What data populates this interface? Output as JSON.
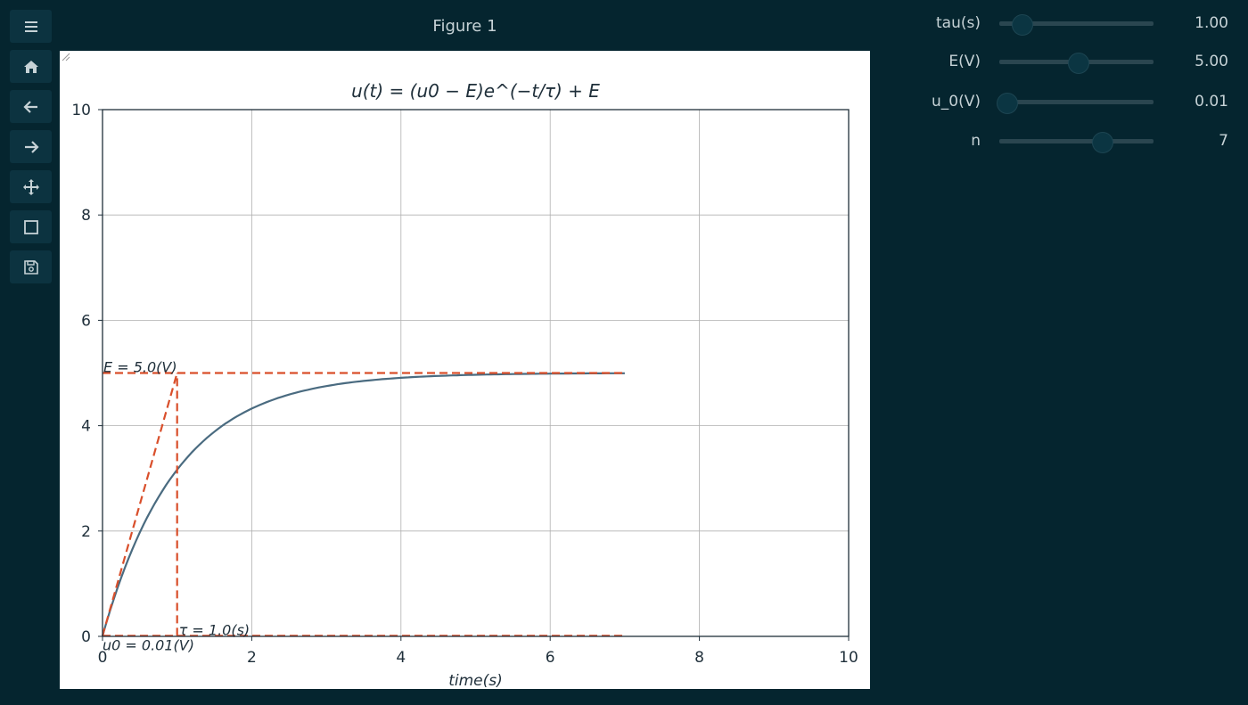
{
  "window": {
    "title": "Figure 1"
  },
  "toolbar": [
    {
      "name": "menu",
      "icon": "menu-icon"
    },
    {
      "name": "home",
      "icon": "home-icon"
    },
    {
      "name": "back",
      "icon": "arrow-left-icon"
    },
    {
      "name": "forward",
      "icon": "arrow-right-icon"
    },
    {
      "name": "pan",
      "icon": "move-icon"
    },
    {
      "name": "zoom",
      "icon": "zoom-rect-icon"
    },
    {
      "name": "save",
      "icon": "save-icon"
    }
  ],
  "controls": [
    {
      "label": "tau(s)",
      "value": "1.00",
      "fraction": 0.11
    },
    {
      "label": "E(V)",
      "value": "5.00",
      "fraction": 0.51
    },
    {
      "label": "u_0(V)",
      "value": "0.01",
      "fraction": 0.0
    },
    {
      "label": "n",
      "value": "7",
      "fraction": 0.68
    }
  ],
  "colors": {
    "background": "#05252f",
    "curve": "#4a6b80",
    "dashed": "#d94f2b",
    "text": "#c6d2d6"
  },
  "chart_data": {
    "type": "line",
    "title": "u(t) = (u0 − E)e^(−t/τ) + E",
    "xlabel": "time(s)",
    "ylabel": "",
    "xlim": [
      0,
      10
    ],
    "ylim": [
      0,
      10
    ],
    "grid": true,
    "xticks": [
      0,
      2,
      4,
      6,
      8,
      10
    ],
    "yticks": [
      0,
      2,
      4,
      6,
      8,
      10
    ],
    "params": {
      "tau": 1.0,
      "E": 5.0,
      "u0": 0.01,
      "t_end": 7
    },
    "series": [
      {
        "name": "u(t)",
        "style": "solid",
        "x": [
          0,
          7
        ],
        "formula": "(u0-E)*exp(-t/tau)+E"
      },
      {
        "name": "E line",
        "style": "dashed",
        "x": [
          0,
          7
        ],
        "y": [
          5.0,
          5.0
        ]
      },
      {
        "name": "u0 line",
        "style": "dashed",
        "x": [
          0,
          7
        ],
        "y": [
          0.01,
          0.01
        ]
      },
      {
        "name": "tangent",
        "style": "dashed",
        "x": [
          0,
          1.0
        ],
        "y": [
          0.01,
          5.0
        ]
      },
      {
        "name": "tau line",
        "style": "dashed",
        "x": [
          1.0,
          1.0
        ],
        "y": [
          0.01,
          5.0
        ]
      }
    ],
    "annotations": [
      {
        "text": "E = 5.0(V)",
        "x": 0,
        "y": 5.0
      },
      {
        "text": "τ = 1.0(s)",
        "x": 1.0,
        "y": 0.01
      },
      {
        "text": "u0 = 0.01(V)",
        "x": 0,
        "y": 0.01
      }
    ]
  }
}
